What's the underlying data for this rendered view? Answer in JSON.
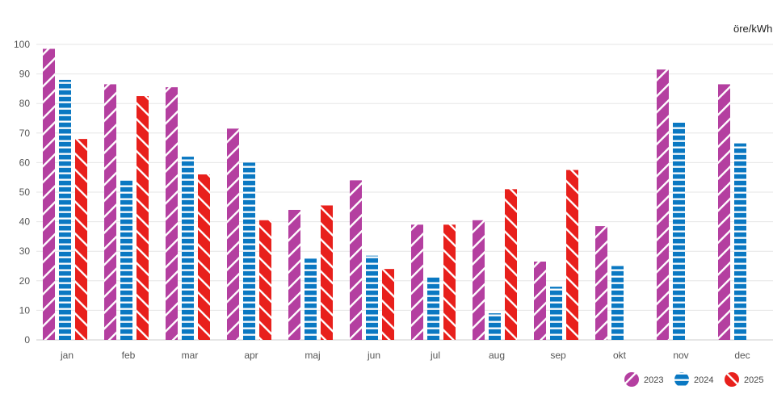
{
  "chart_data": {
    "type": "bar",
    "unit_label": "öre/kWh",
    "categories": [
      "jan",
      "feb",
      "mar",
      "apr",
      "maj",
      "jun",
      "jul",
      "aug",
      "sep",
      "okt",
      "nov",
      "dec"
    ],
    "series": [
      {
        "name": "2023",
        "color": "#b43fa0",
        "pattern": "diagonal-down",
        "values": [
          98.5,
          86.5,
          85.5,
          71.5,
          44,
          54,
          39,
          40.5,
          26.5,
          38.5,
          91.5,
          86.5
        ]
      },
      {
        "name": "2024",
        "color": "#0a78c2",
        "pattern": "horizontal-stripes",
        "values": [
          88,
          54,
          62,
          60,
          27.5,
          28.5,
          21.5,
          9,
          18,
          25,
          73.5,
          66.5
        ]
      },
      {
        "name": "2025",
        "color": "#e8201c",
        "pattern": "diagonal-up",
        "values": [
          68,
          82.5,
          56,
          40.5,
          45.5,
          24,
          39,
          51,
          57.5,
          null,
          null,
          null
        ]
      }
    ],
    "ylim": [
      0,
      100
    ],
    "yticks": [
      0,
      10,
      20,
      30,
      40,
      50,
      60,
      70,
      80,
      90,
      100
    ],
    "grid": true,
    "legend_position": "bottom-right"
  }
}
